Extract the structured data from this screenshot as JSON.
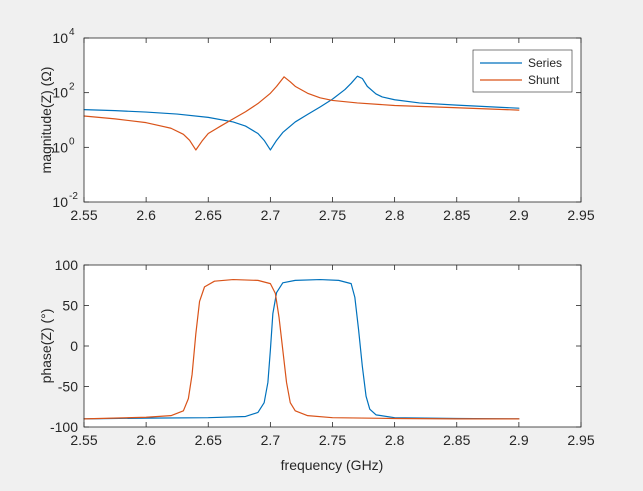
{
  "figure": {
    "background": "#f0f0f0",
    "axes_background": "#ffffff",
    "axis_color": "#262626"
  },
  "chart_data": [
    {
      "type": "line",
      "id": "magnitude",
      "title": "",
      "xlabel": "",
      "ylabel": "magnitude(Z) (Ω)",
      "xscale": "linear",
      "yscale": "log",
      "xlim": [
        2.55,
        2.95
      ],
      "ylim": [
        0.01,
        10000
      ],
      "xticks": [
        2.55,
        2.6,
        2.65,
        2.7,
        2.75,
        2.8,
        2.85,
        2.9,
        2.95
      ],
      "xtick_labels": [
        "2.55",
        "2.6",
        "2.65",
        "2.7",
        "2.75",
        "2.8",
        "2.85",
        "2.9",
        "2.95"
      ],
      "yticks": [
        0.01,
        1,
        100,
        10000
      ],
      "ytick_labels": [
        {
          "base": "10",
          "exp": "-2"
        },
        {
          "base": "10",
          "exp": "0"
        },
        {
          "base": "10",
          "exp": "2"
        },
        {
          "base": "10",
          "exp": "4"
        }
      ],
      "grid": false,
      "legend": {
        "location": "top-right",
        "entries": [
          "Series",
          "Shunt"
        ]
      },
      "series": [
        {
          "name": "Series",
          "color": "#0072bd",
          "x": [
            2.55,
            2.575,
            2.6,
            2.625,
            2.65,
            2.67,
            2.68,
            2.69,
            2.695,
            2.7,
            2.705,
            2.71,
            2.72,
            2.73,
            2.74,
            2.75,
            2.76,
            2.765,
            2.77,
            2.774,
            2.778,
            2.785,
            2.79,
            2.8,
            2.82,
            2.85,
            2.9
          ],
          "y": [
            24,
            22,
            19.5,
            16.5,
            12.5,
            8.5,
            6,
            3.2,
            1.8,
            0.8,
            1.8,
            3.5,
            8.5,
            16,
            30,
            58,
            130,
            220,
            400,
            330,
            170,
            90,
            70,
            55,
            42,
            35,
            27
          ]
        },
        {
          "name": "Shunt",
          "color": "#d95319",
          "x": [
            2.55,
            2.575,
            2.6,
            2.62,
            2.63,
            2.635,
            2.64,
            2.645,
            2.65,
            2.66,
            2.67,
            2.68,
            2.69,
            2.7,
            2.705,
            2.711,
            2.716,
            2.72,
            2.73,
            2.74,
            2.75,
            2.77,
            2.8,
            2.85,
            2.9
          ],
          "y": [
            14,
            11,
            8,
            5,
            3,
            1.8,
            0.8,
            1.7,
            3.2,
            6,
            11,
            20,
            40,
            95,
            170,
            380,
            250,
            170,
            95,
            65,
            52,
            42,
            34,
            28,
            23
          ]
        }
      ]
    },
    {
      "type": "line",
      "id": "phase",
      "title": "",
      "xlabel": "frequency (GHz)",
      "ylabel": "phase(Z) (°)",
      "xscale": "linear",
      "yscale": "linear",
      "xlim": [
        2.55,
        2.95
      ],
      "ylim": [
        -100,
        100
      ],
      "xticks": [
        2.55,
        2.6,
        2.65,
        2.7,
        2.75,
        2.8,
        2.85,
        2.9,
        2.95
      ],
      "xtick_labels": [
        "2.55",
        "2.6",
        "2.65",
        "2.7",
        "2.75",
        "2.8",
        "2.85",
        "2.9",
        "2.95"
      ],
      "yticks": [
        -100,
        -50,
        0,
        50,
        100
      ],
      "ytick_labels": [
        "-100",
        "-50",
        "0",
        "50",
        "100"
      ],
      "grid": false,
      "series": [
        {
          "name": "Series",
          "color": "#0072bd",
          "x": [
            2.55,
            2.6,
            2.65,
            2.68,
            2.69,
            2.695,
            2.698,
            2.7,
            2.702,
            2.705,
            2.71,
            2.72,
            2.74,
            2.755,
            2.765,
            2.768,
            2.771,
            2.774,
            2.777,
            2.78,
            2.785,
            2.8,
            2.85,
            2.9
          ],
          "y": [
            -90,
            -89,
            -88.5,
            -87,
            -82,
            -70,
            -45,
            -5,
            40,
            66,
            78,
            81,
            82,
            81,
            77,
            60,
            20,
            -25,
            -62,
            -78,
            -85,
            -88.5,
            -89.5,
            -90
          ]
        },
        {
          "name": "Shunt",
          "color": "#d95319",
          "x": [
            2.55,
            2.6,
            2.62,
            2.63,
            2.634,
            2.637,
            2.64,
            2.643,
            2.647,
            2.655,
            2.67,
            2.69,
            2.7,
            2.704,
            2.707,
            2.71,
            2.713,
            2.716,
            2.72,
            2.73,
            2.75,
            2.8,
            2.85,
            2.9
          ],
          "y": [
            -90,
            -88,
            -86,
            -80,
            -65,
            -35,
            15,
            55,
            73,
            80,
            82,
            81,
            77,
            65,
            35,
            -5,
            -45,
            -70,
            -80,
            -86,
            -88.5,
            -89.5,
            -90,
            -90
          ]
        }
      ]
    }
  ]
}
